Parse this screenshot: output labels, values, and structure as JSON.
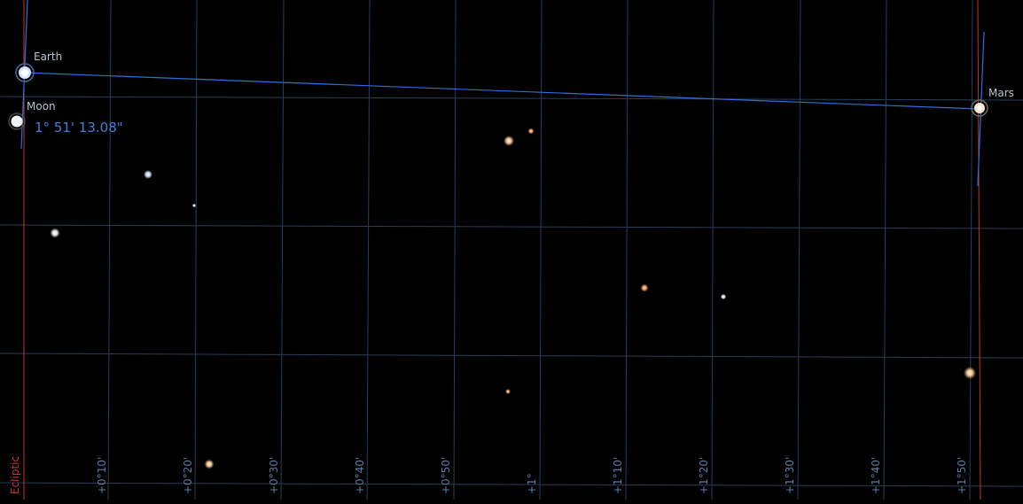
{
  "bodies": {
    "earth": {
      "label": "Earth"
    },
    "moon": {
      "label": "Moon"
    },
    "mars": {
      "label": "Mars"
    }
  },
  "measurement": {
    "angle": "1° 51' 13.08\""
  },
  "ecliptic": {
    "label": "Ecliptic"
  },
  "ticks": {
    "t10": "+0°10'",
    "t20": "+0°20'",
    "t30": "+0°30'",
    "t40": "+0°40'",
    "t50": "+0°50'",
    "t60": "+1°",
    "t70": "+1°10'",
    "t80": "+1°20'",
    "t90": "+1°30'",
    "t100": "+1°40'",
    "t110": "+1°50'"
  },
  "colors": {
    "background": "#000000",
    "grid": "#2a3d57",
    "grid_label": "#5d7aa3",
    "measure_line": "#2f6fd8",
    "ecliptic": "#c03434",
    "star_white": "#ffffff",
    "star_orange": "#ffb070"
  }
}
